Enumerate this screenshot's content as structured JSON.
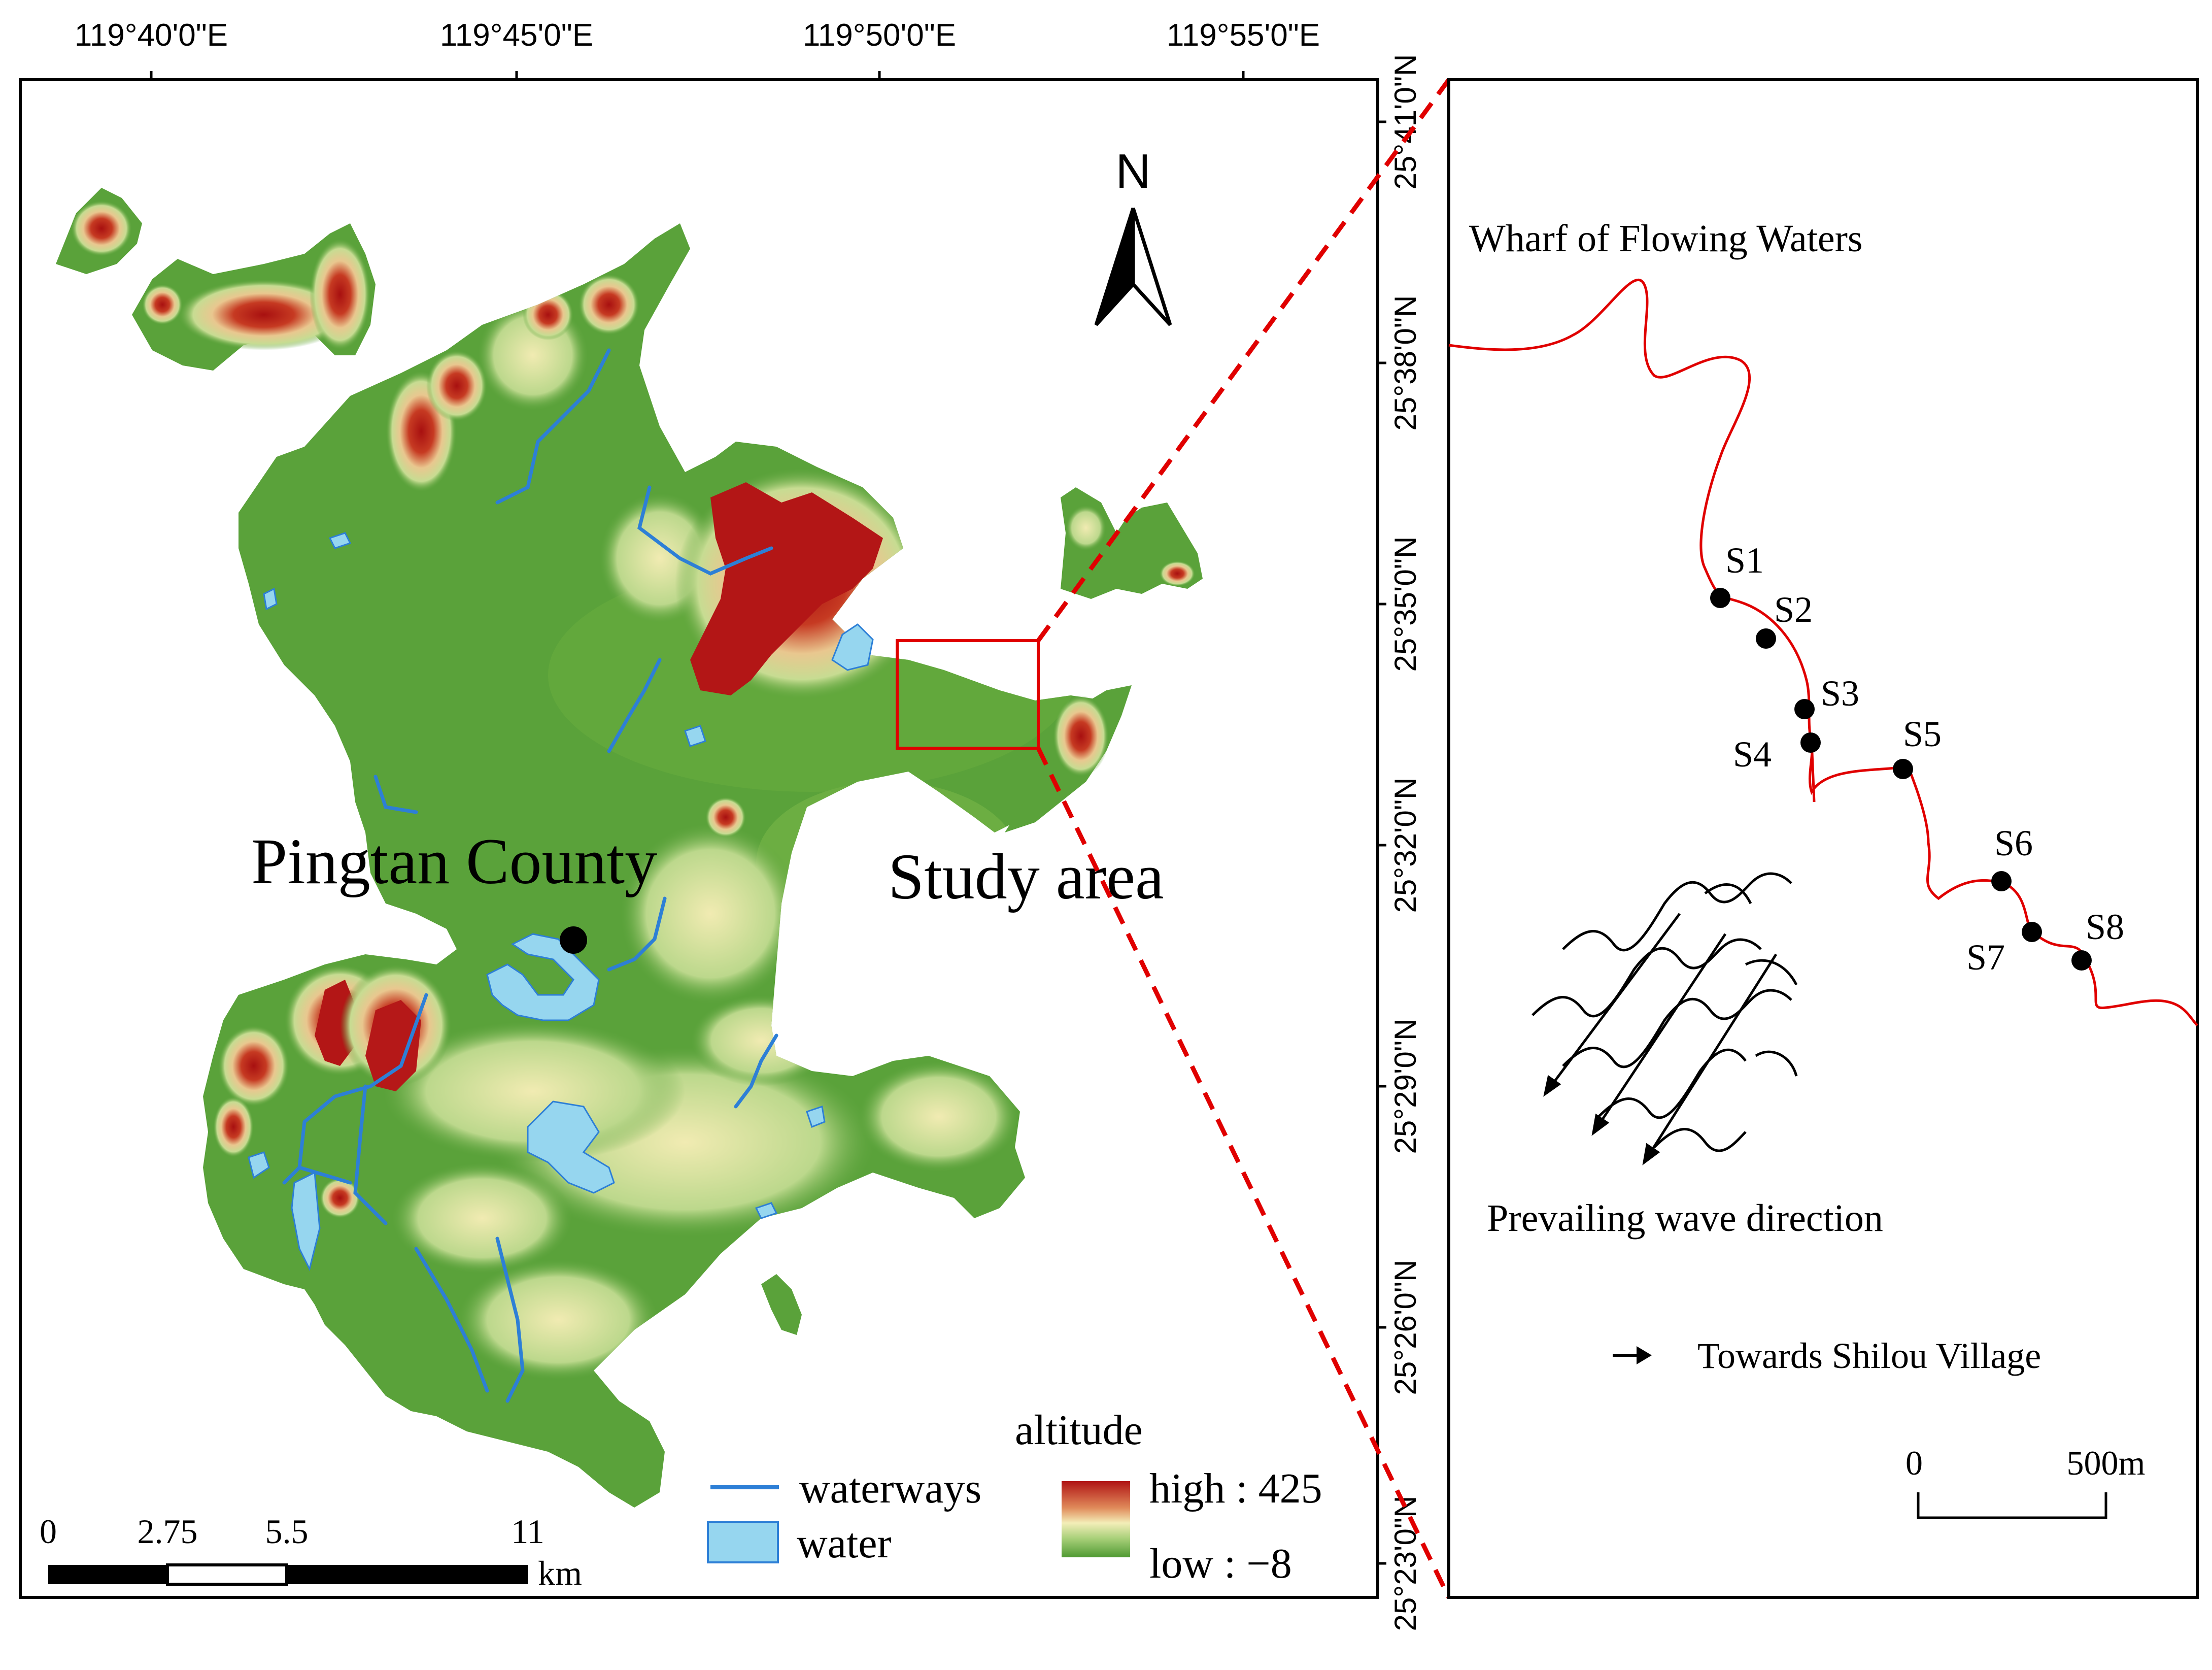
{
  "left_map": {
    "lon_labels": [
      "119°40'0\"E",
      "119°45'0\"E",
      "119°50'0\"E",
      "119°55'0\"E"
    ],
    "lat_labels": [
      "25°41'0\"N",
      "25°38'0\"N",
      "25°35'0\"N",
      "25°32'0\"N",
      "25°29'0\"N",
      "25°26'0\"N",
      "25°23'0\"N"
    ],
    "north_label": "N",
    "county_label": "Pingtan County",
    "study_label": "Study area",
    "scale_ticks": [
      "0",
      "2.75",
      "5.5",
      "11"
    ],
    "scale_unit": "km",
    "legend": {
      "title": "altitude",
      "waterways_label": "waterways",
      "water_label": "water",
      "high_label": "high : 425",
      "low_label": "low : −8"
    },
    "colors": {
      "terrain_low": "#4f9a32",
      "terrain_mid": "#f2ecb4",
      "terrain_high": "#b01414",
      "water_fill": "#96d6ef",
      "water_line": "#2d7fd6",
      "study_box": "#e00000"
    }
  },
  "right_map": {
    "wharf_label": "Wharf of Flowing Waters",
    "stations": [
      "S1",
      "S2",
      "S3",
      "S4",
      "S5",
      "S6",
      "S7",
      "S8"
    ],
    "wave_label": "Prevailing wave direction",
    "towards_label": "Towards Shilou Village",
    "scale_ticks": [
      "0",
      "500m"
    ]
  }
}
